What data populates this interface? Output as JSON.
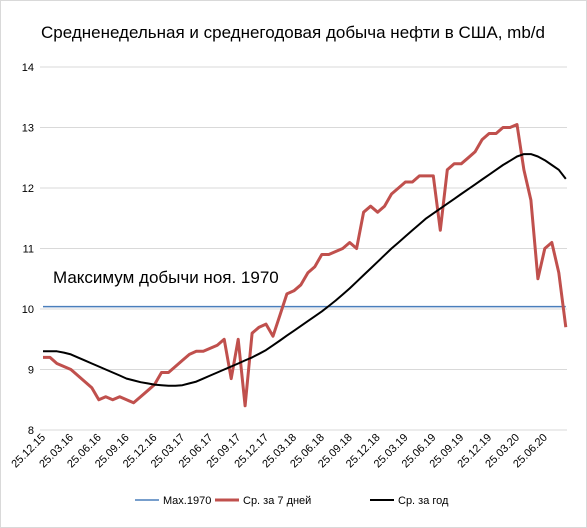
{
  "chart_data": {
    "type": "line",
    "title": "Средненедельная и среднегодовая добыча нефти в США, mb/d",
    "annotation": "Максимум добычи ноя. 1970",
    "categories": [
      "25.12.15",
      null,
      null,
      null,
      "25.03.16",
      null,
      null,
      null,
      "25.06.16",
      null,
      null,
      null,
      "25.09.16",
      null,
      null,
      null,
      "25.12.16",
      null,
      null,
      null,
      "25.03.17",
      null,
      null,
      null,
      "25.06.17",
      null,
      null,
      null,
      "25.09.17",
      null,
      null,
      null,
      "25.12.17",
      null,
      null,
      null,
      "25.03.18",
      null,
      null,
      null,
      "25.06.18",
      null,
      null,
      null,
      "25.09.18",
      null,
      null,
      null,
      "25.12.18",
      null,
      null,
      null,
      "25.03.19",
      null,
      null,
      null,
      "25.06.19",
      null,
      null,
      null,
      "25.09.19",
      null,
      null,
      null,
      "25.12.19",
      null,
      null,
      null,
      "25.03.20",
      null,
      null,
      null,
      "25.06.20",
      null,
      null,
      null
    ],
    "series": [
      {
        "name": "Max.1970",
        "color": "#4a7ebb",
        "width": 1.5,
        "values": [
          10.04,
          10.04,
          10.04,
          10.04,
          10.04,
          10.04,
          10.04,
          10.04,
          10.04,
          10.04,
          10.04,
          10.04,
          10.04,
          10.04,
          10.04,
          10.04,
          10.04,
          10.04,
          10.04,
          10.04,
          10.04,
          10.04,
          10.04,
          10.04,
          10.04,
          10.04,
          10.04,
          10.04,
          10.04,
          10.04,
          10.04,
          10.04,
          10.04,
          10.04,
          10.04,
          10.04,
          10.04,
          10.04,
          10.04,
          10.04,
          10.04,
          10.04,
          10.04,
          10.04,
          10.04,
          10.04,
          10.04,
          10.04,
          10.04,
          10.04,
          10.04,
          10.04,
          10.04,
          10.04,
          10.04,
          10.04,
          10.04,
          10.04,
          10.04,
          10.04,
          10.04,
          10.04,
          10.04,
          10.04,
          10.04,
          10.04,
          10.04,
          10.04,
          10.04,
          10.04,
          10.04,
          10.04,
          10.04,
          10.04,
          10.04,
          10.04
        ]
      },
      {
        "name": "Ср. за 7 дней",
        "color": "#c0504d",
        "width": 3,
        "values": [
          9.2,
          9.2,
          9.1,
          9.05,
          9.0,
          8.9,
          8.8,
          8.7,
          8.5,
          8.55,
          8.5,
          8.55,
          8.5,
          8.45,
          8.55,
          8.65,
          8.75,
          8.95,
          8.95,
          9.05,
          9.15,
          9.25,
          9.3,
          9.3,
          9.35,
          9.4,
          9.5,
          8.85,
          9.5,
          8.4,
          9.6,
          9.7,
          9.75,
          9.55,
          9.9,
          10.25,
          10.3,
          10.4,
          10.6,
          10.7,
          10.9,
          10.9,
          10.95,
          11.0,
          11.1,
          11.0,
          11.6,
          11.7,
          11.6,
          11.7,
          11.9,
          12.0,
          12.1,
          12.1,
          12.2,
          12.2,
          12.2,
          11.3,
          12.3,
          12.4,
          12.4,
          12.5,
          12.6,
          12.8,
          12.9,
          12.9,
          13.0,
          13.0,
          13.05,
          12.3,
          11.8,
          10.5,
          11.0,
          11.1,
          10.6,
          9.7
        ]
      },
      {
        "name": "Ср. за год",
        "color": "#000000",
        "width": 2,
        "values": [
          9.3,
          9.3,
          9.3,
          9.28,
          9.25,
          9.2,
          9.15,
          9.1,
          9.05,
          9.0,
          8.95,
          8.9,
          8.85,
          8.82,
          8.79,
          8.77,
          8.75,
          8.74,
          8.73,
          8.73,
          8.74,
          8.77,
          8.8,
          8.85,
          8.9,
          8.95,
          9.0,
          9.05,
          9.1,
          9.15,
          9.2,
          9.26,
          9.32,
          9.4,
          9.48,
          9.56,
          9.64,
          9.72,
          9.8,
          9.88,
          9.96,
          10.05,
          10.14,
          10.24,
          10.34,
          10.45,
          10.56,
          10.67,
          10.78,
          10.89,
          11.0,
          11.1,
          11.2,
          11.3,
          11.4,
          11.5,
          11.58,
          11.66,
          11.74,
          11.82,
          11.9,
          11.98,
          12.06,
          12.14,
          12.22,
          12.3,
          12.38,
          12.45,
          12.52,
          12.56,
          12.56,
          12.52,
          12.46,
          12.38,
          12.3,
          12.15
        ]
      }
    ],
    "ylim": [
      8,
      14
    ],
    "yticks": [
      8,
      9,
      10,
      11,
      12,
      13,
      14
    ],
    "grid": true,
    "legend": "bottom"
  }
}
